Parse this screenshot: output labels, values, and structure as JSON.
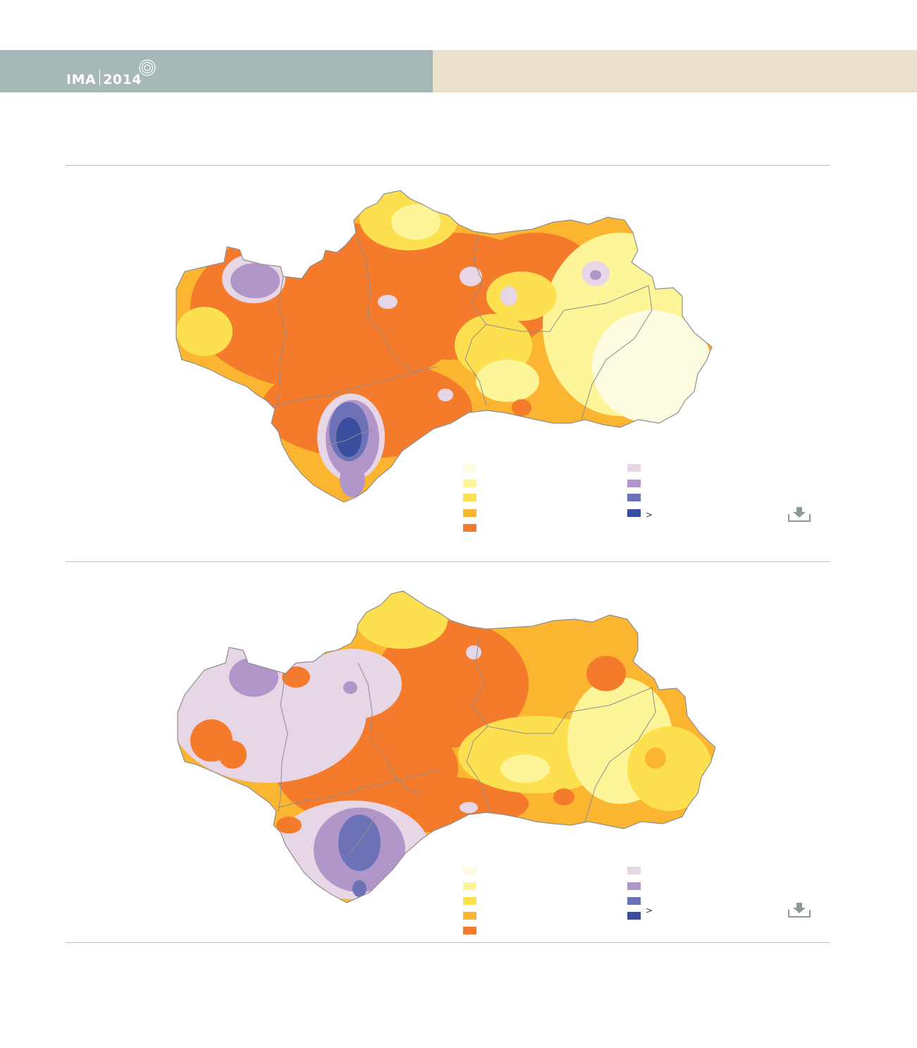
{
  "header": {
    "brand": "IMA",
    "year": "2014",
    "colors": {
      "band_left": "#a6b8b8",
      "band_right": "#ebe0cc"
    }
  },
  "palette": {
    "c1": "#fefce0",
    "c2": "#fdf597",
    "c3": "#fde04f",
    "c4": "#fbb531",
    "c5": "#f47a2c",
    "p1": "#e6d6e6",
    "p2": "#b197c9",
    "p3": "#6d72b6",
    "p4": "#3a4ea0",
    "border": "#8e8e8e"
  },
  "maps": [
    {
      "legend_left": [
        "#fefce0",
        "#fdf597",
        "#fde04f",
        "#fbb531",
        "#f47a2c"
      ],
      "legend_right": [
        "#e6d6e6",
        "#b197c9",
        "#6d72b6",
        "#3a4ea0"
      ],
      "legend_last_prefix": ">",
      "download_icon": "download-icon"
    },
    {
      "legend_left": [
        "#fefce0",
        "#fdf597",
        "#fde04f",
        "#fbb531",
        "#f47a2c"
      ],
      "legend_right": [
        "#e6d6e6",
        "#b197c9",
        "#6d72b6",
        "#3a4ea0"
      ],
      "legend_last_prefix": ">",
      "download_icon": "download-icon"
    }
  ]
}
